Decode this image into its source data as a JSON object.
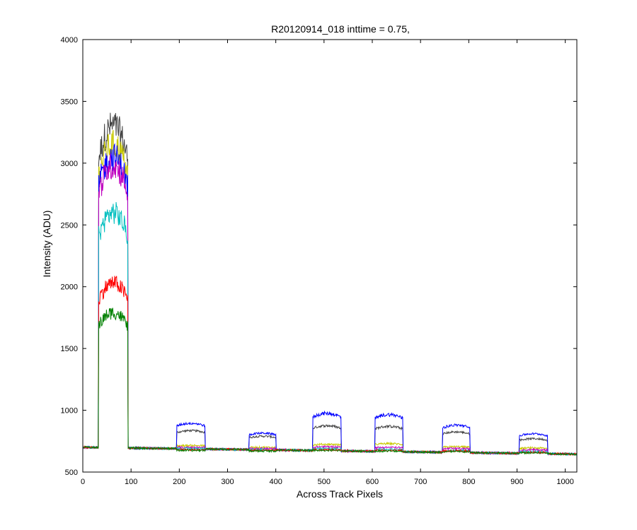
{
  "chart_data": {
    "type": "line",
    "title": "R20120914_018 inttime = 0.75,",
    "xlabel": "Across Track Pixels",
    "ylabel": "Intensity (ADU)",
    "xlim": [
      0,
      1024
    ],
    "ylim": [
      500,
      4000
    ],
    "xticks": [
      0,
      100,
      200,
      300,
      400,
      500,
      600,
      700,
      800,
      900,
      1000
    ],
    "yticks": [
      500,
      1000,
      1500,
      2000,
      2500,
      3000,
      3500,
      4000
    ],
    "grid": false,
    "legend": "none",
    "baseline": {
      "start": 700,
      "end": 645
    },
    "noise": 8,
    "segments": [
      {
        "start": 33,
        "end": 93
      },
      {
        "start": 195,
        "end": 253
      },
      {
        "start": 345,
        "end": 400
      },
      {
        "start": 477,
        "end": 535
      },
      {
        "start": 606,
        "end": 663
      },
      {
        "start": 746,
        "end": 802
      },
      {
        "start": 905,
        "end": 963
      }
    ],
    "series": [
      {
        "color": "#404040",
        "peaks": [
          3300,
          835,
          790,
          875,
          870,
          825,
          770
        ]
      },
      {
        "color": "#c8c800",
        "peaks": [
          3150,
          715,
          700,
          725,
          730,
          705,
          695
        ]
      },
      {
        "color": "#0000ff",
        "peaks": [
          3050,
          895,
          815,
          975,
          965,
          880,
          810
        ]
      },
      {
        "color": "#bf00bf",
        "peaks": [
          2980,
          700,
          690,
          705,
          700,
          690,
          680
        ]
      },
      {
        "color": "#00bfbf",
        "peaks": [
          2600,
          690,
          680,
          690,
          685,
          675,
          665
        ]
      },
      {
        "color": "#ff0000",
        "peaks": [
          2030,
          680,
          675,
          680,
          675,
          670,
          660
        ]
      },
      {
        "color": "#008000",
        "peaks": [
          1790,
          675,
          670,
          675,
          670,
          665,
          655
        ]
      }
    ]
  }
}
